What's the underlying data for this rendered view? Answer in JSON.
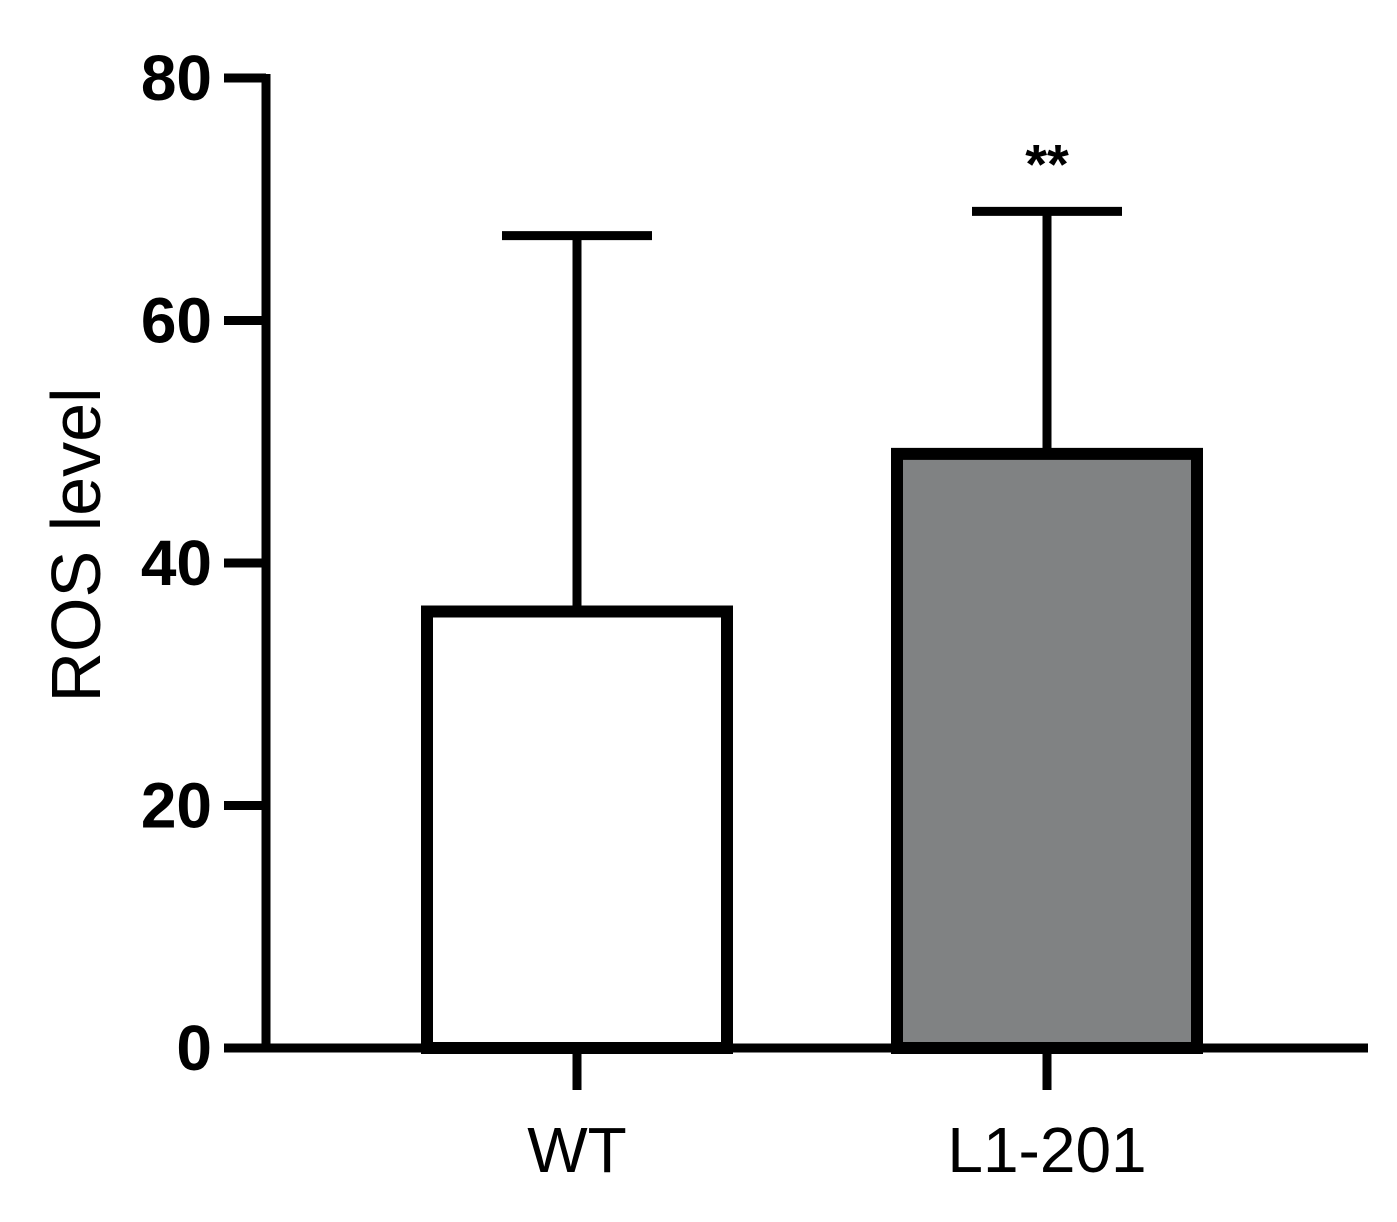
{
  "chart_data": {
    "type": "bar",
    "title": "",
    "xlabel": "",
    "ylabel": "ROS level",
    "ylim": [
      0,
      80
    ],
    "yticks": [
      0,
      20,
      40,
      60,
      80
    ],
    "categories": [
      "WT",
      "L1-201"
    ],
    "values": [
      36,
      49
    ],
    "error_upper": [
      67,
      69
    ],
    "significance": [
      "",
      "**"
    ],
    "bar_colors": [
      "#ffffff",
      "#808283"
    ],
    "edge_color": "#000000",
    "grid": false,
    "legend": "none"
  }
}
